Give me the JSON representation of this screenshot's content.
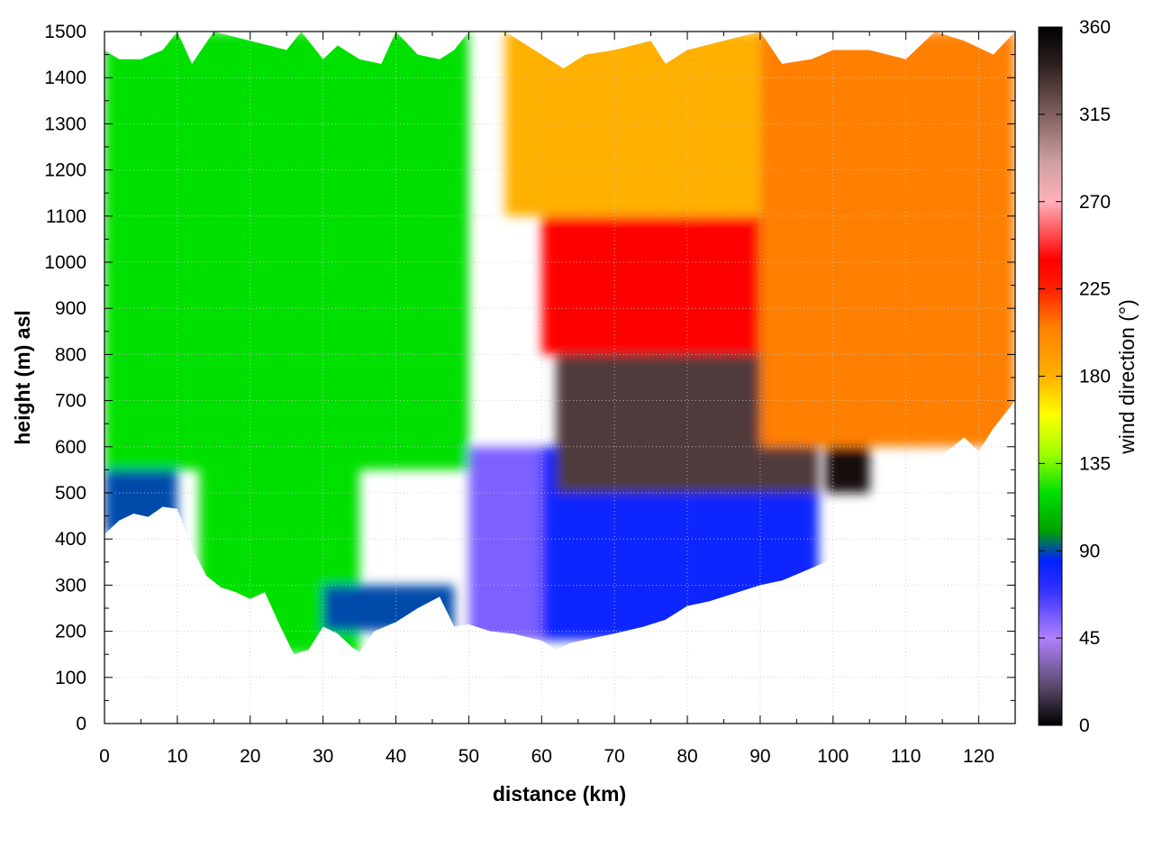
{
  "chart_data": {
    "type": "heatmap",
    "title": "",
    "xlabel": "distance (km)",
    "ylabel": "height (m) asl",
    "colorbar_label": "wind direction (°)",
    "xlim": [
      0,
      125
    ],
    "ylim": [
      0,
      1500
    ],
    "clim": [
      0,
      360
    ],
    "grid": true,
    "x_ticks": [
      0,
      10,
      20,
      30,
      40,
      50,
      60,
      70,
      80,
      90,
      100,
      110,
      120
    ],
    "y_ticks": [
      0,
      100,
      200,
      300,
      400,
      500,
      600,
      700,
      800,
      900,
      1000,
      1100,
      1200,
      1300,
      1400,
      1500
    ],
    "colorbar_ticks": [
      0,
      45,
      90,
      135,
      180,
      225,
      270,
      315,
      360
    ],
    "colormap": [
      [
        0,
        "#000000"
      ],
      [
        20,
        "#5a4a6a"
      ],
      [
        45,
        "#b080ff"
      ],
      [
        70,
        "#3030ff"
      ],
      [
        85,
        "#0020ff"
      ],
      [
        100,
        "#00a000"
      ],
      [
        120,
        "#00e000"
      ],
      [
        140,
        "#a0ff00"
      ],
      [
        160,
        "#ffff00"
      ],
      [
        180,
        "#ffb000"
      ],
      [
        205,
        "#ff8000"
      ],
      [
        225,
        "#ff2000"
      ],
      [
        240,
        "#ff0000"
      ],
      [
        270,
        "#ffb0b8"
      ],
      [
        290,
        "#d0a0a0"
      ],
      [
        315,
        "#806060"
      ],
      [
        340,
        "#302020"
      ],
      [
        360,
        "#000000"
      ]
    ],
    "terrain_height": [
      [
        0,
        410
      ],
      [
        2,
        440
      ],
      [
        4,
        455
      ],
      [
        6,
        448
      ],
      [
        8,
        470
      ],
      [
        10,
        465
      ],
      [
        12,
        380
      ],
      [
        14,
        320
      ],
      [
        16,
        295
      ],
      [
        18,
        285
      ],
      [
        20,
        270
      ],
      [
        22,
        285
      ],
      [
        24,
        215
      ],
      [
        26,
        150
      ],
      [
        28,
        160
      ],
      [
        30,
        210
      ],
      [
        32,
        195
      ],
      [
        34,
        165
      ],
      [
        35,
        155
      ],
      [
        37,
        200
      ],
      [
        40,
        220
      ],
      [
        43,
        250
      ],
      [
        46,
        275
      ],
      [
        48,
        210
      ],
      [
        50,
        215
      ],
      [
        53,
        200
      ],
      [
        56,
        195
      ],
      [
        60,
        180
      ],
      [
        62,
        160
      ],
      [
        64,
        175
      ],
      [
        67,
        185
      ],
      [
        70,
        195
      ],
      [
        74,
        210
      ],
      [
        77,
        225
      ],
      [
        80,
        255
      ],
      [
        83,
        265
      ],
      [
        87,
        285
      ],
      [
        90,
        300
      ],
      [
        93,
        310
      ],
      [
        96,
        330
      ],
      [
        99,
        350
      ],
      [
        100,
        380
      ],
      [
        103,
        420
      ],
      [
        106,
        470
      ],
      [
        110,
        530
      ],
      [
        114,
        570
      ],
      [
        118,
        620
      ],
      [
        120,
        590
      ],
      [
        122,
        640
      ],
      [
        125,
        700
      ]
    ],
    "profile_top": [
      [
        0,
        1460
      ],
      [
        2,
        1440
      ],
      [
        5,
        1440
      ],
      [
        8,
        1460
      ],
      [
        10,
        1500
      ],
      [
        12,
        1430
      ],
      [
        15,
        1500
      ],
      [
        20,
        1480
      ],
      [
        25,
        1460
      ],
      [
        27,
        1500
      ],
      [
        30,
        1440
      ],
      [
        32,
        1470
      ],
      [
        35,
        1440
      ],
      [
        38,
        1430
      ],
      [
        40,
        1500
      ],
      [
        43,
        1450
      ],
      [
        46,
        1440
      ],
      [
        48,
        1460
      ],
      [
        50,
        1500
      ],
      [
        55,
        1500
      ],
      [
        60,
        1450
      ],
      [
        63,
        1420
      ],
      [
        66,
        1450
      ],
      [
        70,
        1460
      ],
      [
        75,
        1480
      ],
      [
        77,
        1430
      ],
      [
        80,
        1460
      ],
      [
        85,
        1480
      ],
      [
        90,
        1500
      ],
      [
        93,
        1430
      ],
      [
        97,
        1440
      ],
      [
        100,
        1460
      ],
      [
        105,
        1460
      ],
      [
        110,
        1440
      ],
      [
        114,
        1500
      ],
      [
        118,
        1480
      ],
      [
        122,
        1450
      ],
      [
        125,
        1500
      ]
    ],
    "wind_direction_field": [
      {
        "x": [
          0,
          50
        ],
        "y": [
          550,
          1500
        ],
        "direction_deg": 120
      },
      {
        "x": [
          0,
          10
        ],
        "y": [
          410,
          550
        ],
        "direction_deg": 90
      },
      {
        "x": [
          13,
          35
        ],
        "y": [
          150,
          600
        ],
        "direction_deg": 120
      },
      {
        "x": [
          30,
          48
        ],
        "y": [
          200,
          300
        ],
        "direction_deg": 90
      },
      {
        "x": [
          50,
          62
        ],
        "y": [
          180,
          600
        ],
        "direction_deg": 55
      },
      {
        "x": [
          60,
          98
        ],
        "y": [
          180,
          600
        ],
        "direction_deg": 80
      },
      {
        "x": [
          62,
          98
        ],
        "y": [
          500,
          900
        ],
        "direction_deg": 330
      },
      {
        "x": [
          99,
          105
        ],
        "y": [
          500,
          800
        ],
        "direction_deg": 350
      },
      {
        "x": [
          60,
          110
        ],
        "y": [
          800,
          1100
        ],
        "direction_deg": 240
      },
      {
        "x": [
          55,
          90
        ],
        "y": [
          1100,
          1500
        ],
        "direction_deg": 180
      },
      {
        "x": [
          90,
          125
        ],
        "y": [
          600,
          1500
        ],
        "direction_deg": 205
      }
    ]
  }
}
